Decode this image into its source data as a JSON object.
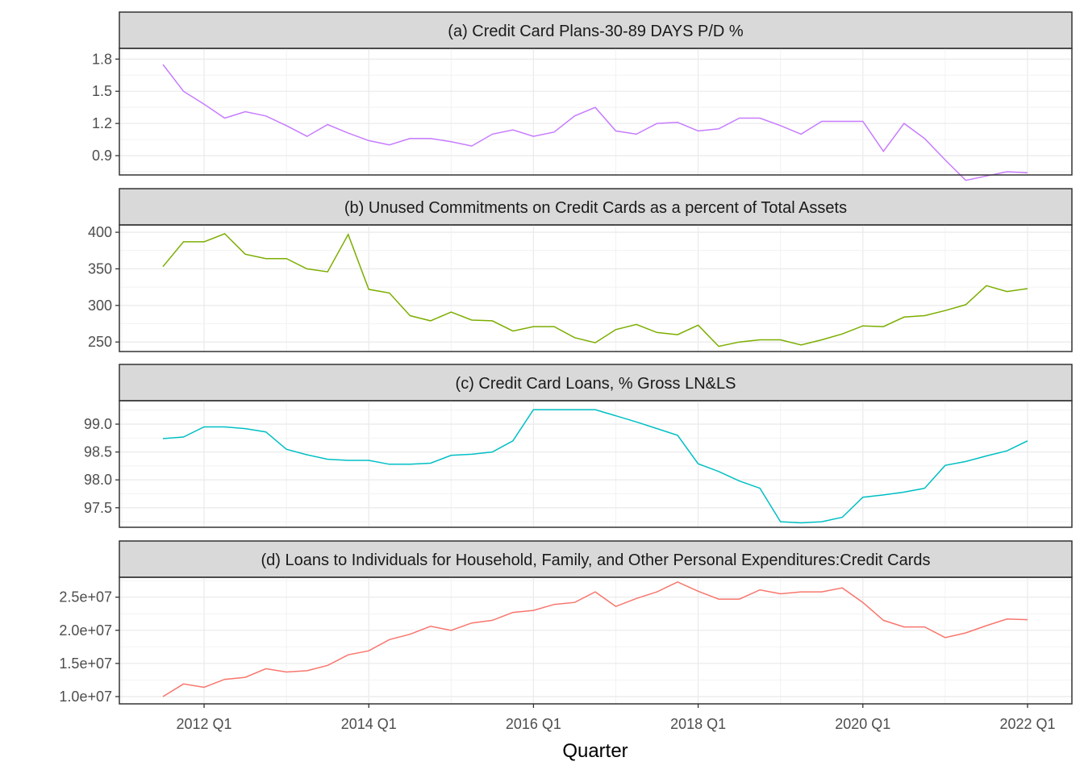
{
  "chart_data": {
    "type": "line",
    "xlabel": "Quarter",
    "x_ticks": [
      "2012 Q1",
      "2014 Q1",
      "2016 Q1",
      "2018 Q1",
      "2020 Q1",
      "2022 Q1"
    ],
    "x": [
      "2011 Q3",
      "2011 Q4",
      "2012 Q1",
      "2012 Q2",
      "2012 Q3",
      "2012 Q4",
      "2013 Q1",
      "2013 Q2",
      "2013 Q3",
      "2013 Q4",
      "2014 Q1",
      "2014 Q2",
      "2014 Q3",
      "2014 Q4",
      "2015 Q1",
      "2015 Q2",
      "2015 Q3",
      "2015 Q4",
      "2016 Q1",
      "2016 Q2",
      "2016 Q3",
      "2016 Q4",
      "2017 Q1",
      "2017 Q2",
      "2017 Q3",
      "2017 Q4",
      "2018 Q1",
      "2018 Q2",
      "2018 Q3",
      "2018 Q4",
      "2019 Q1",
      "2019 Q2",
      "2019 Q3",
      "2019 Q4",
      "2020 Q1",
      "2020 Q2",
      "2020 Q3",
      "2020 Q4",
      "2021 Q1",
      "2021 Q2",
      "2021 Q3",
      "2021 Q4",
      "2022 Q1"
    ],
    "grid": true,
    "panels": [
      {
        "title": "(a) Credit Card Plans-30-89 DAYS P/D %",
        "color": "#C77CFF",
        "ylim": [
          0.72,
          1.9
        ],
        "y_ticks": [
          "0.9",
          "1.2",
          "1.5",
          "1.8"
        ],
        "y_tick_values": [
          0.9,
          1.2,
          1.5,
          1.8
        ],
        "values": [
          1.75,
          1.5,
          1.38,
          1.25,
          1.31,
          1.27,
          1.18,
          1.08,
          1.19,
          1.11,
          1.04,
          1.0,
          1.06,
          1.06,
          1.03,
          0.99,
          1.1,
          1.14,
          1.08,
          1.12,
          1.27,
          1.35,
          1.13,
          1.1,
          1.2,
          1.21,
          1.13,
          1.15,
          1.25,
          1.25,
          1.18,
          1.1,
          1.22,
          1.22,
          1.22,
          0.94,
          1.2,
          1.06,
          0.86,
          0.67,
          0.71,
          0.75,
          0.74
        ]
      },
      {
        "title": "(b) Unused Commitments on Credit Cards as a percent of Total Assets",
        "color": "#7CAE00",
        "ylim": [
          237,
          410
        ],
        "y_ticks": [
          "250",
          "300",
          "350",
          "400"
        ],
        "y_tick_values": [
          250,
          300,
          350,
          400
        ],
        "values": [
          353,
          387,
          387,
          398,
          370,
          364,
          364,
          350,
          346,
          397,
          322,
          317,
          286,
          279,
          291,
          280,
          279,
          265,
          271,
          271,
          256,
          249,
          267,
          274,
          263,
          260,
          273,
          244,
          250,
          253,
          253,
          246,
          253,
          261,
          272,
          271,
          284,
          286,
          293,
          301,
          327,
          319,
          323
        ]
      },
      {
        "title": "(c) Credit Card Loans, % Gross LN&LS",
        "color": "#00BFC4",
        "ylim": [
          97.15,
          99.42
        ],
        "y_ticks": [
          "97.5",
          "98.0",
          "98.5",
          "99.0"
        ],
        "y_tick_values": [
          97.5,
          98.0,
          98.5,
          99.0
        ],
        "values": [
          98.74,
          98.77,
          98.95,
          98.95,
          98.92,
          98.86,
          98.55,
          98.45,
          98.37,
          98.35,
          98.35,
          98.28,
          98.28,
          98.3,
          98.44,
          98.46,
          98.5,
          98.7,
          99.26,
          99.26,
          99.26,
          99.26,
          99.15,
          99.04,
          98.92,
          98.8,
          98.29,
          98.15,
          97.98,
          97.85,
          97.25,
          97.23,
          97.25,
          97.33,
          97.69,
          97.73,
          97.78,
          97.85,
          98.26,
          98.33,
          98.43,
          98.52,
          98.7
        ]
      },
      {
        "title": "(d) Loans to Individuals for Household, Family, and Other Personal Expenditures:Credit Cards",
        "color": "#F8766D",
        "ylim": [
          8900000,
          28000000
        ],
        "y_ticks": [
          "1.0e+07",
          "1.5e+07",
          "2.0e+07",
          "2.5e+07"
        ],
        "y_tick_values": [
          10000000,
          15000000,
          20000000,
          25000000
        ],
        "values": [
          10000000,
          11900000,
          11400000,
          12600000,
          12900000,
          14200000,
          13700000,
          13900000,
          14700000,
          16300000,
          16900000,
          18600000,
          19400000,
          20600000,
          20000000,
          21100000,
          21500000,
          22700000,
          23000000,
          23900000,
          24200000,
          25800000,
          23600000,
          24800000,
          25800000,
          27300000,
          25900000,
          24700000,
          24700000,
          26100000,
          25500000,
          25800000,
          25800000,
          26400000,
          24200000,
          21500000,
          20500000,
          20500000,
          18900000,
          19600000,
          20700000,
          21700000,
          21600000
        ]
      }
    ]
  }
}
